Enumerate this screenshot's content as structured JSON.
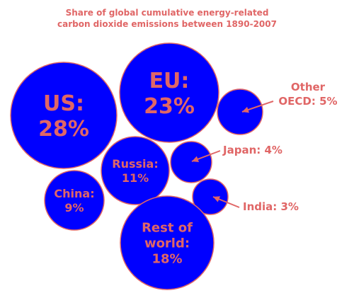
{
  "chart_data": {
    "type": "bubble",
    "title": "Share of global cumulative energy-related",
    "subtitle": "carbon dioxide emissions between 1890-2007",
    "colors": {
      "bubble_fill": "#0000ff",
      "bubble_stroke": "#e06666",
      "text": "#e06666"
    },
    "series": [
      {
        "name": "US",
        "value": 28,
        "label_lines": [
          "US:",
          "28%"
        ],
        "label_placement": "inside"
      },
      {
        "name": "EU",
        "value": 23,
        "label_lines": [
          "EU:",
          "23%"
        ],
        "label_placement": "inside"
      },
      {
        "name": "Other OECD",
        "value": 5,
        "label_lines": [
          "Other",
          "OECD: 5%"
        ],
        "label_placement": "callout"
      },
      {
        "name": "Russia",
        "value": 11,
        "label_lines": [
          "Russia:",
          "11%"
        ],
        "label_placement": "inside"
      },
      {
        "name": "Japan",
        "value": 4,
        "label_lines": [
          "Japan: 4%"
        ],
        "label_placement": "callout"
      },
      {
        "name": "China",
        "value": 9,
        "label_lines": [
          "China:",
          "9%"
        ],
        "label_placement": "inside"
      },
      {
        "name": "India",
        "value": 3,
        "label_lines": [
          "India: 3%"
        ],
        "label_placement": "callout"
      },
      {
        "name": "Rest of world",
        "value": 18,
        "label_lines": [
          "Rest of",
          "world:",
          "18%"
        ],
        "label_placement": "inside"
      }
    ]
  }
}
